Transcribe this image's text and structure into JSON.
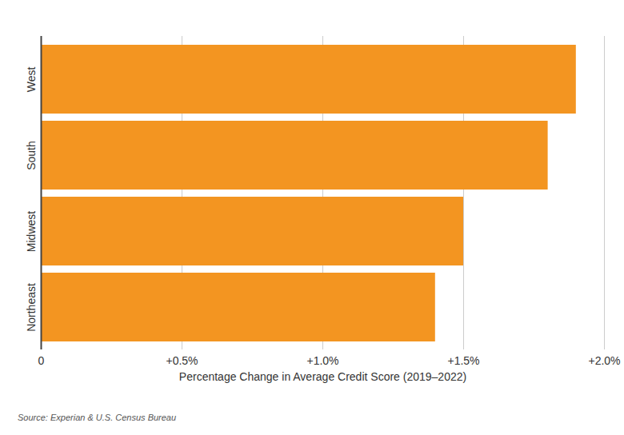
{
  "chart_data": {
    "type": "bar",
    "orientation": "horizontal",
    "categories": [
      "West",
      "South",
      "Midwest",
      "Northeast"
    ],
    "values": [
      1.9,
      1.8,
      1.5,
      1.4
    ],
    "color": "#f39521",
    "xlabel": "Percentage Change in Average Credit Score (2019–2022)",
    "xlim": [
      0,
      2.0
    ],
    "xticks": [
      0,
      {
        "value": 0.5,
        "label": "+0.5%"
      },
      {
        "value": 1.0,
        "label": "+1.0%"
      },
      {
        "value": 1.5,
        "label": "+1.5%"
      },
      {
        "value": 2.0,
        "label": "+2.0%"
      }
    ],
    "grid": true,
    "caption": "Source: Experian & U.S. Census Bureau"
  }
}
